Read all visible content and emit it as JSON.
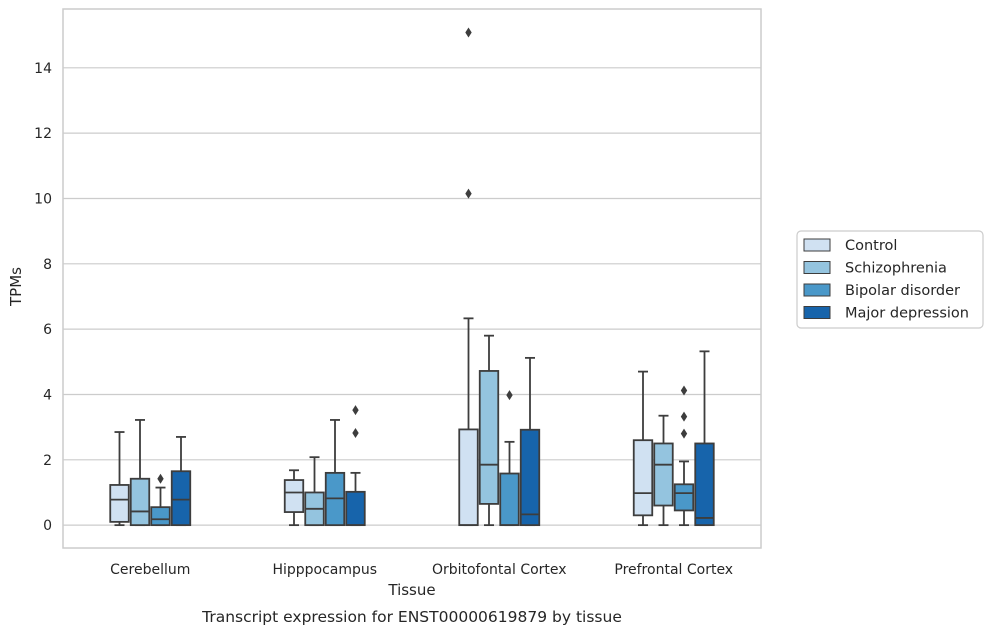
{
  "chart_data": {
    "type": "box",
    "title": "Transcript expression for ENST00000619879 by tissue",
    "xlabel": "Tissue",
    "ylabel": "TPMs",
    "ylim": [
      -0.7,
      15.8
    ],
    "yticks": [
      0,
      2,
      4,
      6,
      8,
      10,
      12,
      14
    ],
    "grid": "horizontal",
    "legend_position": "right",
    "categories": [
      "Cerebellum",
      "Hipppocampus",
      "Orbitofontal Cortex",
      "Prefrontal Cortex"
    ],
    "series": [
      {
        "name": "Control",
        "color": "#d0e1f2",
        "boxes": [
          {
            "min": 0.0,
            "q1": 0.1,
            "median": 0.78,
            "q3": 1.23,
            "max": 2.85,
            "outliers": []
          },
          {
            "min": 0.0,
            "q1": 0.4,
            "median": 1.0,
            "q3": 1.38,
            "max": 1.68,
            "outliers": []
          },
          {
            "min": 0.0,
            "q1": 0.0,
            "median": 0.0,
            "q3": 2.93,
            "max": 6.33,
            "outliers": [
              10.15,
              15.08
            ]
          },
          {
            "min": 0.0,
            "q1": 0.3,
            "median": 0.98,
            "q3": 2.6,
            "max": 4.7,
            "outliers": []
          }
        ]
      },
      {
        "name": "Schizophrenia",
        "color": "#94c4df",
        "boxes": [
          {
            "min": 0.0,
            "q1": 0.0,
            "median": 0.42,
            "q3": 1.42,
            "max": 3.22,
            "outliers": []
          },
          {
            "min": 0.0,
            "q1": 0.0,
            "median": 0.5,
            "q3": 1.0,
            "max": 2.08,
            "outliers": []
          },
          {
            "min": 0.0,
            "q1": 0.65,
            "median": 1.85,
            "q3": 4.72,
            "max": 5.8,
            "outliers": []
          },
          {
            "min": 0.0,
            "q1": 0.6,
            "median": 1.85,
            "q3": 2.5,
            "max": 3.35,
            "outliers": []
          }
        ]
      },
      {
        "name": "Bipolar disorder",
        "color": "#4a98c9",
        "boxes": [
          {
            "min": 0.0,
            "q1": 0.0,
            "median": 0.18,
            "q3": 0.55,
            "max": 1.15,
            "outliers": [
              1.42
            ]
          },
          {
            "min": 0.0,
            "q1": 0.0,
            "median": 0.82,
            "q3": 1.6,
            "max": 3.22,
            "outliers": []
          },
          {
            "min": 0.0,
            "q1": 0.0,
            "median": 0.0,
            "q3": 1.58,
            "max": 2.55,
            "outliers": [
              3.98
            ]
          },
          {
            "min": 0.0,
            "q1": 0.45,
            "median": 0.98,
            "q3": 1.25,
            "max": 1.95,
            "outliers": [
              2.8,
              3.32,
              4.12
            ]
          }
        ]
      },
      {
        "name": "Major depression",
        "color": "#1764ab",
        "boxes": [
          {
            "min": 0.0,
            "q1": 0.0,
            "median": 0.78,
            "q3": 1.65,
            "max": 2.7,
            "outliers": []
          },
          {
            "min": 0.0,
            "q1": 0.0,
            "median": 0.0,
            "q3": 1.02,
            "max": 1.6,
            "outliers": [
              2.82,
              3.52
            ]
          },
          {
            "min": 0.0,
            "q1": 0.0,
            "median": 0.33,
            "q3": 2.92,
            "max": 5.12,
            "outliers": []
          },
          {
            "min": 0.0,
            "q1": 0.0,
            "median": 0.22,
            "q3": 2.5,
            "max": 5.32,
            "outliers": []
          }
        ]
      }
    ]
  }
}
